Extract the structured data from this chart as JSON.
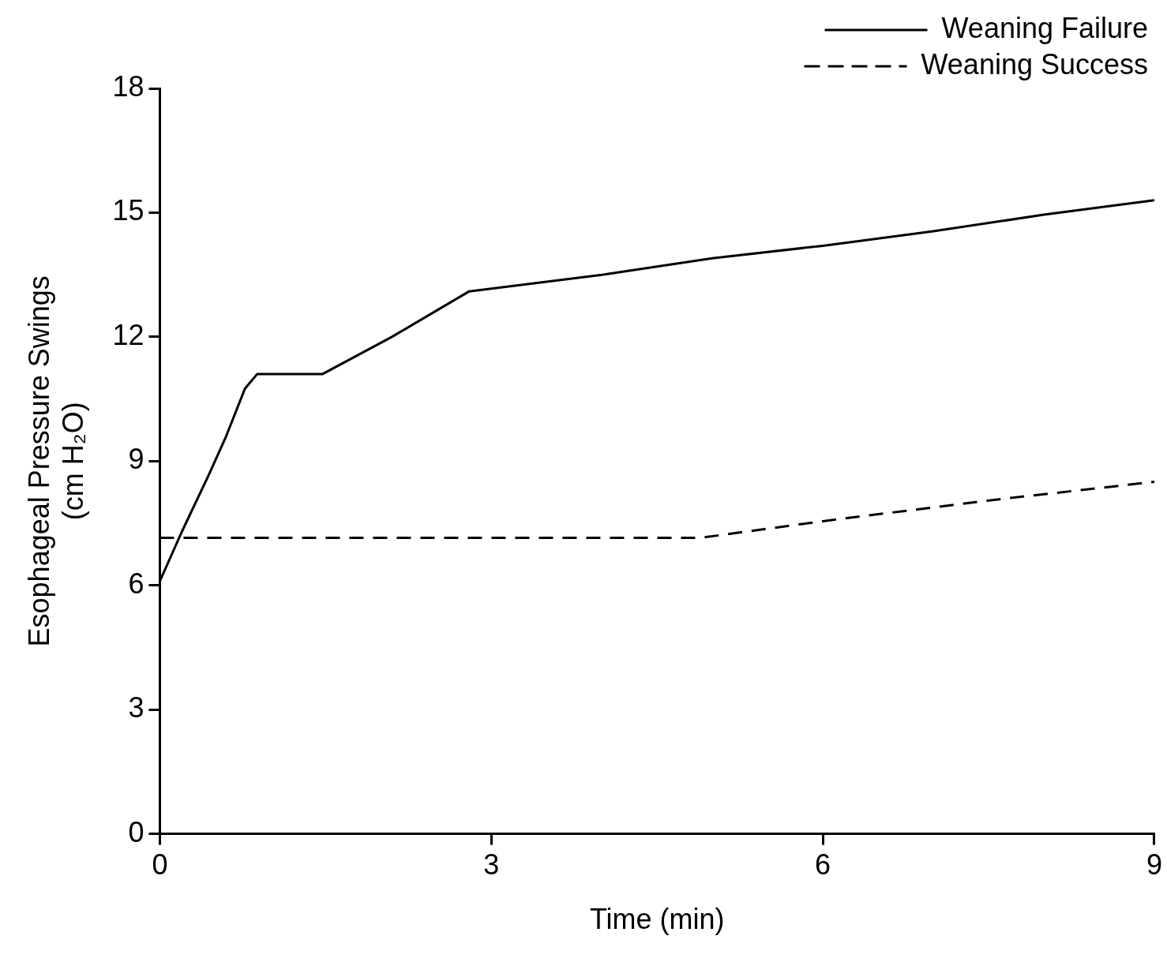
{
  "chart_data": {
    "type": "line",
    "xlabel": "Time (min)",
    "ylabel": "Esophageal Pressure Swings\n(cm H₂O)",
    "xlim": [
      0,
      9
    ],
    "xticks": [
      0,
      3,
      6,
      9
    ],
    "ylim": [
      0,
      18
    ],
    "yticks": [
      0,
      3,
      6,
      9,
      12,
      15,
      18
    ],
    "grid": false,
    "legend": "top right",
    "marker": "none",
    "series": [
      {
        "name": "Weaning Failure",
        "color": "#000000",
        "line_style": "solid",
        "x": [
          0,
          0,
          0.2,
          0.44,
          0.6,
          0.77,
          0.88,
          1.47,
          2.1,
          2.8,
          4,
          5,
          6,
          7,
          8,
          9
        ],
        "values": [
          0,
          6.1,
          7.3,
          8.65,
          9.6,
          10.75,
          11.1,
          11.1,
          12,
          13.1,
          13.5,
          13.9,
          14.2,
          14.55,
          14.95,
          15.3
        ]
      },
      {
        "name": "Weaning Success",
        "color": "#000000",
        "line_style": "dashed",
        "x": [
          0,
          2,
          4,
          4.9,
          6,
          7.5,
          9
        ],
        "values": [
          7.15,
          7.15,
          7.15,
          7.15,
          7.55,
          8.05,
          8.5
        ]
      }
    ]
  }
}
